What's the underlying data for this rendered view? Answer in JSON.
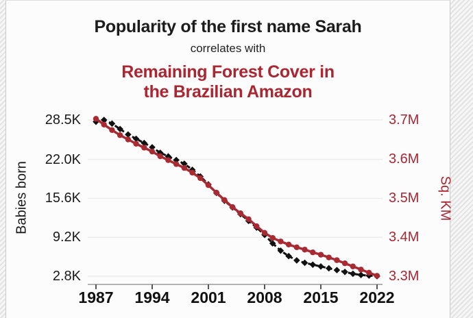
{
  "titles": {
    "main": "Popularity of the first name Sarah",
    "connector": "correlates with",
    "red_line1": "Remaining Forest Cover in",
    "red_line2": "the Brazilian Amazon"
  },
  "colors": {
    "series_black": "#111111",
    "series_red": "#a82a33",
    "text_red": "#aa2631",
    "gridline": "#ececec",
    "axis_line": "#999999"
  },
  "chart_data": {
    "type": "line",
    "title": "Popularity of the first name Sarah correlates with Remaining Forest Cover in the Brazilian Amazon",
    "x": [
      1987,
      1988,
      1989,
      1990,
      1991,
      1992,
      1993,
      1994,
      1995,
      1996,
      1997,
      1998,
      1999,
      2000,
      2001,
      2002,
      2003,
      2004,
      2005,
      2006,
      2007,
      2008,
      2009,
      2010,
      2011,
      2012,
      2013,
      2014,
      2015,
      2016,
      2017,
      2018,
      2019,
      2020,
      2021,
      2022
    ],
    "series": [
      {
        "name": "Babies born (first name Sarah)",
        "axis": "left",
        "unit": "K",
        "color": "#111111",
        "line_style": "dashed",
        "marker": "diamond",
        "values": [
          28.2,
          28.5,
          27.9,
          27.0,
          26.1,
          25.4,
          24.7,
          24.0,
          23.1,
          22.5,
          21.9,
          21.3,
          20.3,
          19.2,
          17.9,
          16.5,
          15.2,
          14.1,
          13.0,
          11.9,
          10.8,
          9.6,
          8.2,
          7.0,
          6.1,
          5.4,
          5.0,
          4.7,
          4.4,
          4.1,
          3.8,
          3.5,
          3.2,
          3.0,
          2.9,
          2.8
        ]
      },
      {
        "name": "Remaining Forest Cover in the Brazilian Amazon",
        "axis": "right",
        "unit": "M sq. km",
        "color": "#a82a33",
        "line_style": "solid",
        "marker": "circle",
        "values": [
          3.703,
          3.688,
          3.674,
          3.661,
          3.65,
          3.639,
          3.629,
          3.619,
          3.607,
          3.597,
          3.587,
          3.577,
          3.565,
          3.551,
          3.533,
          3.514,
          3.495,
          3.477,
          3.461,
          3.446,
          3.428,
          3.411,
          3.398,
          3.389,
          3.381,
          3.374,
          3.368,
          3.361,
          3.355,
          3.348,
          3.341,
          3.333,
          3.325,
          3.317,
          3.309,
          3.301
        ]
      }
    ],
    "x_axis": {
      "range": [
        1987,
        2022
      ],
      "ticks": [
        "1987",
        "1994",
        "2001",
        "2008",
        "2015",
        "2022"
      ],
      "tick_values": [
        1987,
        1994,
        2001,
        2008,
        2015,
        2022
      ]
    },
    "left_axis": {
      "label": "Babies born",
      "range": [
        2.8,
        28.5
      ],
      "ticks": [
        "28.5K",
        "22.0K",
        "15.6K",
        "9.2K",
        "2.8K"
      ],
      "tick_values": [
        28.5,
        22.0,
        15.6,
        9.2,
        2.8
      ]
    },
    "right_axis": {
      "label": "Sq. KM",
      "range": [
        3.3,
        3.7
      ],
      "ticks": [
        "3.7M",
        "3.6M",
        "3.5M",
        "3.4M",
        "3.3M"
      ],
      "tick_values": [
        3.7,
        3.6,
        3.5,
        3.4,
        3.3
      ]
    },
    "grid": true,
    "legend": false
  }
}
